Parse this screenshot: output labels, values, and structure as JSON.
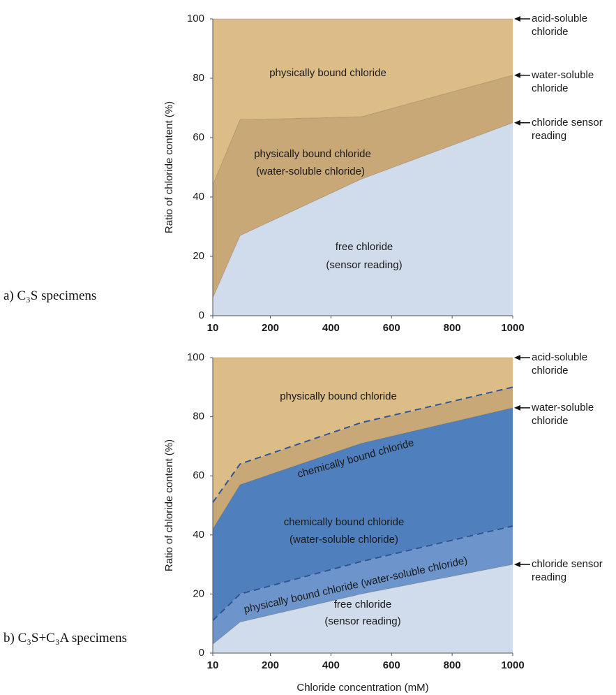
{
  "chart_data": [
    {
      "type": "band",
      "panel_label": "a) C₃S specimens",
      "y_label": "Ratio of chloride content (%)",
      "x": [
        10,
        100,
        500,
        1000
      ],
      "xlim": [
        10,
        1000
      ],
      "xticks": [
        10,
        200,
        400,
        600,
        800,
        1000
      ],
      "ylim": [
        0,
        100
      ],
      "yticks": [
        0,
        20,
        40,
        60,
        80,
        100
      ],
      "series": [
        {
          "name": "chloride sensor reading",
          "color": "#d0dcec",
          "values": [
            6,
            27,
            46,
            65
          ]
        },
        {
          "name": "water-soluble chloride",
          "color": "#c9a878",
          "values": [
            44,
            66,
            67,
            81
          ]
        },
        {
          "name": "acid-soluble chloride",
          "color": "#dcbd88",
          "values": [
            100,
            100,
            100,
            100
          ]
        }
      ],
      "annotations": [
        "physically bound chloride",
        "physically bound chloride",
        "(water-soluble chloride)",
        "free chloride",
        "(sensor reading)"
      ]
    },
    {
      "type": "band",
      "panel_label": "b) C₃S+C₃A specimens",
      "y_label": "Ratio of chloride content (%)",
      "x_label": "Chloride concentration (mM)",
      "x": [
        10,
        100,
        500,
        1000
      ],
      "xlim": [
        10,
        1000
      ],
      "xticks": [
        10,
        200,
        400,
        600,
        800,
        1000
      ],
      "ylim": [
        0,
        100
      ],
      "yticks": [
        0,
        20,
        40,
        60,
        80,
        100
      ],
      "series": [
        {
          "name": "chloride sensor reading",
          "color": "#d0dcec",
          "values": [
            3,
            10.5,
            20,
            30
          ]
        },
        {
          "color": "#6d95cc",
          "style": "dashed",
          "values": [
            11,
            20,
            31,
            43
          ]
        },
        {
          "name": "water-soluble chloride",
          "color": "#4f80bd",
          "values": [
            42,
            57,
            71,
            83
          ]
        },
        {
          "color": "#c9a878",
          "style": "dashed",
          "values": [
            51,
            64,
            78,
            90
          ]
        },
        {
          "name": "acid-soluble chloride",
          "color": "#dcbd88",
          "values": [
            100,
            100,
            100,
            100
          ]
        }
      ],
      "annotations": [
        "physically bound chloride",
        "chemically bound chloride",
        "chemically bound chloride",
        "(water-soluble chloride)",
        "physically bound chloride (water-soluble chloride)",
        "free chloride",
        "(sensor reading)"
      ]
    }
  ]
}
